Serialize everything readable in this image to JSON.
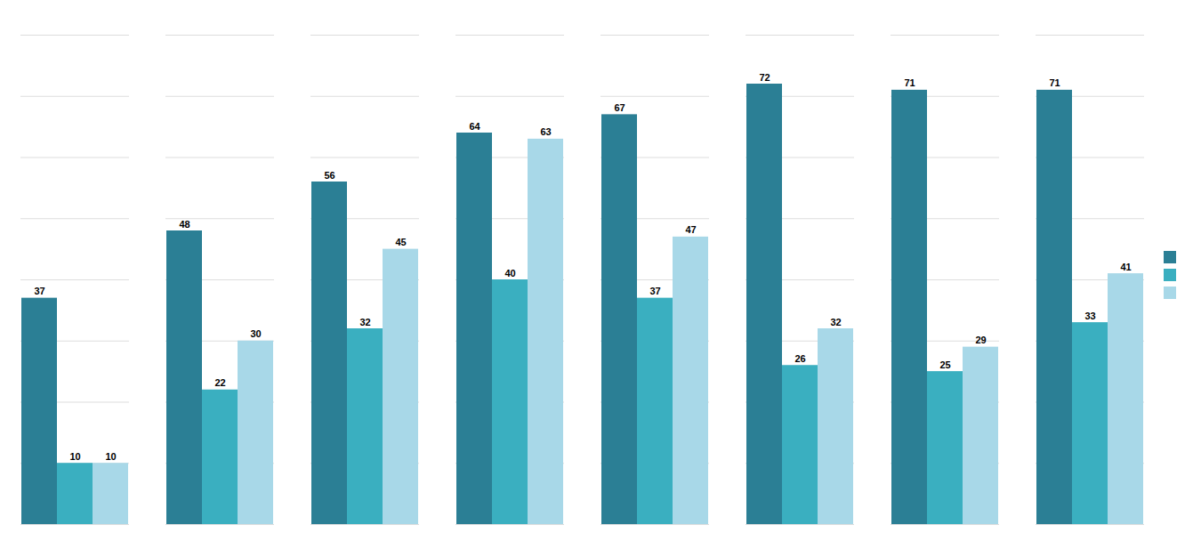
{
  "chart_data": {
    "type": "bar",
    "categories": [
      null,
      null,
      null,
      null,
      null,
      null,
      null,
      null
    ],
    "series": [
      {
        "color": "#2B7F95",
        "values": [
          37,
          48,
          56,
          64,
          67,
          72,
          71,
          71
        ]
      },
      {
        "color": "#3AAFC0",
        "values": [
          10,
          22,
          32,
          40,
          37,
          26,
          25,
          33
        ]
      },
      {
        "color": "#A8D8E8",
        "values": [
          10,
          30,
          45,
          63,
          47,
          32,
          29,
          41
        ]
      }
    ],
    "ylim": [
      0,
      80
    ],
    "yticks": [
      0,
      10,
      20,
      30,
      40,
      50,
      60,
      70,
      80
    ],
    "grid": true,
    "data_labels": true,
    "tick_labels": false,
    "legend": "right"
  }
}
